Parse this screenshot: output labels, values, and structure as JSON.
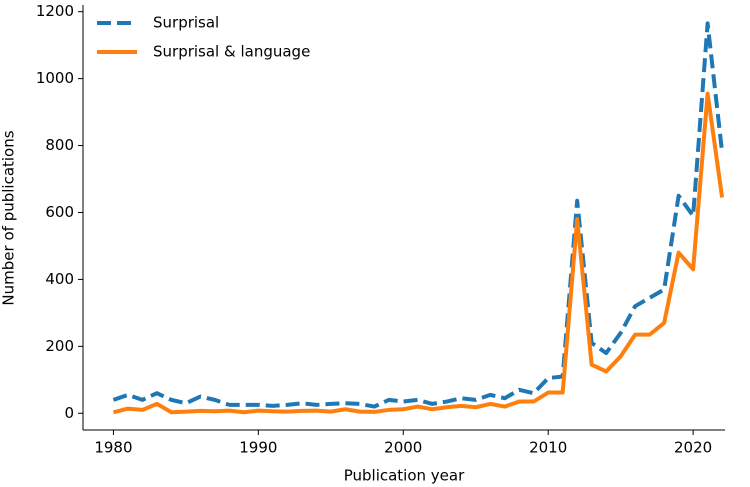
{
  "chart_data": {
    "type": "line",
    "xlabel": "Publication year",
    "ylabel": "Number of publications",
    "x": [
      1980,
      1981,
      1982,
      1983,
      1984,
      1985,
      1986,
      1987,
      1988,
      1989,
      1990,
      1991,
      1992,
      1993,
      1994,
      1995,
      1996,
      1997,
      1998,
      1999,
      2000,
      2001,
      2002,
      2003,
      2004,
      2005,
      2006,
      2007,
      2008,
      2009,
      2010,
      2011,
      2012,
      2013,
      2014,
      2015,
      2016,
      2017,
      2018,
      2019,
      2020,
      2021,
      2022
    ],
    "series": [
      {
        "name": "Surprisal",
        "color": "#1f77b4",
        "linestyle": "dashed",
        "values": [
          40,
          55,
          40,
          60,
          40,
          30,
          50,
          40,
          25,
          25,
          25,
          22,
          25,
          30,
          25,
          28,
          30,
          28,
          20,
          40,
          35,
          40,
          28,
          35,
          45,
          40,
          55,
          45,
          70,
          60,
          105,
          110,
          635,
          210,
          180,
          240,
          320,
          345,
          370,
          650,
          590,
          1165,
          780
        ]
      },
      {
        "name": "Surprisal & language",
        "color": "#ff7f0e",
        "linestyle": "solid",
        "values": [
          3,
          14,
          10,
          28,
          3,
          5,
          7,
          6,
          8,
          3,
          8,
          6,
          5,
          7,
          8,
          5,
          12,
          5,
          4,
          10,
          12,
          20,
          12,
          18,
          22,
          18,
          28,
          20,
          35,
          35,
          62,
          62,
          580,
          145,
          125,
          170,
          235,
          235,
          270,
          480,
          430,
          955,
          645
        ]
      }
    ],
    "xlim": [
      1977.9,
      2022.2
    ],
    "ylim": [
      -50,
      1220
    ],
    "xticks": [
      1980,
      1990,
      2000,
      2010,
      2020
    ],
    "yticks": [
      0,
      200,
      400,
      600,
      800,
      1000,
      1200
    ],
    "legend": "upper left"
  }
}
